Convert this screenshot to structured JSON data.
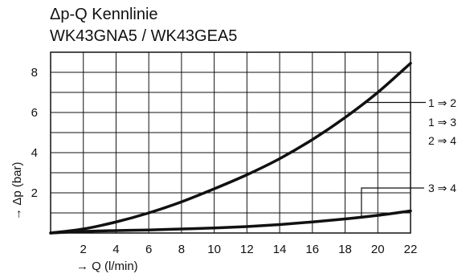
{
  "chart_data": {
    "type": "line",
    "title": "Δp-Q Kennlinie",
    "subtitle": "WK43GNA5 / WK43GEA5",
    "xlabel": "→ Q (l/min)",
    "ylabel": "→ Δp (bar)",
    "xlim": [
      0,
      22
    ],
    "ylim": [
      0,
      9
    ],
    "x_ticks": [
      2,
      4,
      6,
      8,
      10,
      12,
      14,
      16,
      18,
      20,
      22
    ],
    "y_ticks": [
      2,
      4,
      6,
      8
    ],
    "grid": true,
    "series": [
      {
        "name": "1 ⇒ 2 / 1 ⇒ 3 / 2 ⇒ 4",
        "labels": [
          "1 ⇒ 2",
          "1 ⇒ 3",
          "2 ⇒ 4"
        ],
        "x": [
          0,
          2,
          4,
          6,
          8,
          10,
          12,
          14,
          16,
          18,
          20,
          22
        ],
        "y": [
          0,
          0.2,
          0.55,
          1.0,
          1.55,
          2.2,
          2.9,
          3.7,
          4.65,
          5.75,
          7.0,
          8.45
        ]
      },
      {
        "name": "3 ⇒ 4",
        "labels": [
          "3 ⇒ 4"
        ],
        "x": [
          0,
          2,
          4,
          6,
          8,
          10,
          12,
          14,
          16,
          18,
          20,
          22
        ],
        "y": [
          0,
          0.08,
          0.12,
          0.15,
          0.2,
          0.25,
          0.32,
          0.42,
          0.55,
          0.7,
          0.88,
          1.1
        ]
      }
    ]
  }
}
